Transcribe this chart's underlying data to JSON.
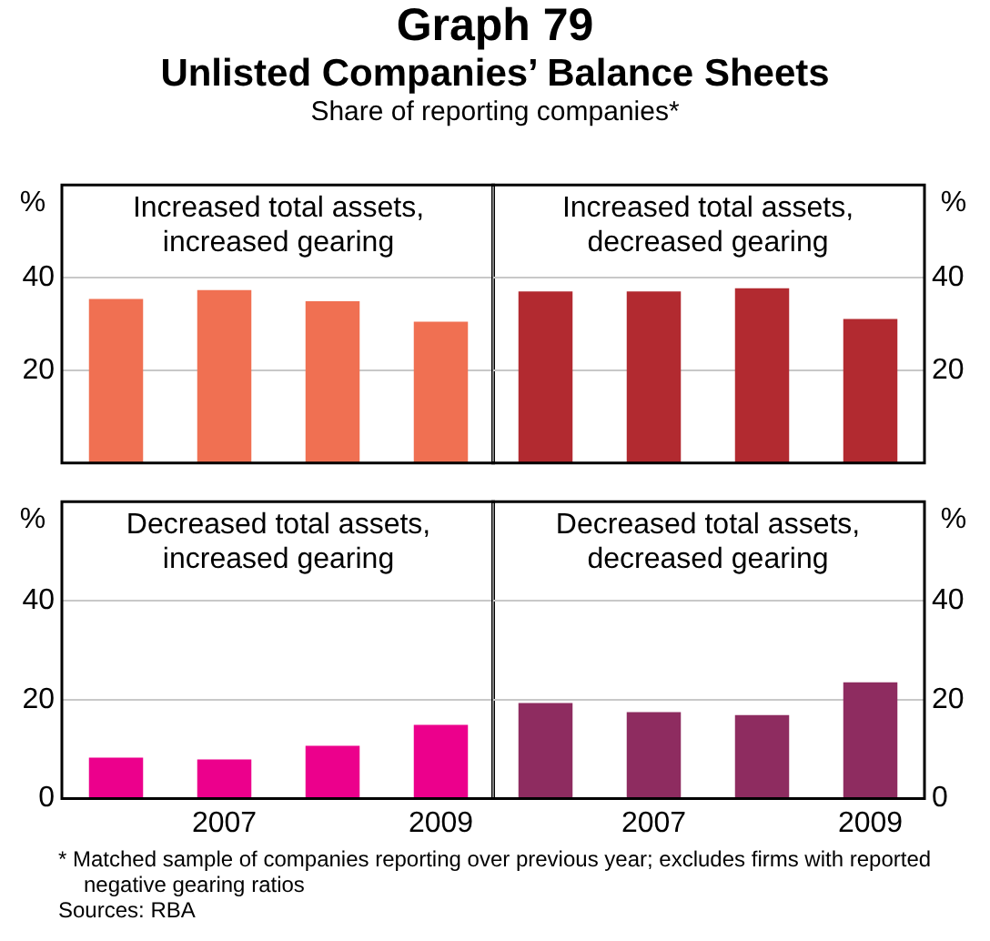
{
  "chart_data": [
    {
      "type": "bar",
      "title": "Increased total assets, increased gearing",
      "ylabel": "%",
      "annotations": [
        "Graph 79",
        "Unlisted Companies’ Balance Sheets",
        "Share of reporting companies*"
      ],
      "categories": [
        null,
        "2007",
        null,
        "2009"
      ],
      "values": [
        35.4,
        37.3,
        34.9,
        30.5
      ],
      "color": "#f07052",
      "ylim": [
        0,
        60
      ],
      "yticks": [
        20,
        40
      ],
      "grid": "y",
      "tick_labels": "y"
    },
    {
      "type": "bar",
      "title": "Increased total assets, decreased gearing",
      "ylabel": "%",
      "categories": [
        null,
        "2007",
        null,
        "2009"
      ],
      "values": [
        37.0,
        37.0,
        37.7,
        31.1
      ],
      "color": "#b22a30",
      "ylim": [
        0,
        60
      ],
      "yticks": [
        20,
        40
      ],
      "grid": "y",
      "tick_labels": "y"
    },
    {
      "type": "bar",
      "title": "Decreased total assets, increased gearing",
      "ylabel": "%",
      "categories": [
        null,
        "2007",
        null,
        "2009"
      ],
      "values": [
        8.3,
        7.9,
        10.7,
        14.9
      ],
      "color": "#ec008c",
      "ylim": [
        0,
        60
      ],
      "yticks": [
        0,
        20,
        40
      ],
      "grid": "y"
    },
    {
      "type": "bar",
      "title": "Decreased total assets, decreased gearing",
      "ylabel": "%",
      "annotations": [
        "*   Matched sample of companies reporting over previous year; excludes firms with reported negative gearing ratios",
        "Sources: RBA"
      ],
      "categories": [
        null,
        "2007",
        null,
        "2009"
      ],
      "values": [
        19.3,
        17.5,
        16.9,
        23.5
      ],
      "color": "#8e2c60",
      "ylim": [
        0,
        60
      ],
      "yticks": [
        0,
        20,
        40
      ],
      "grid": "y"
    }
  ]
}
